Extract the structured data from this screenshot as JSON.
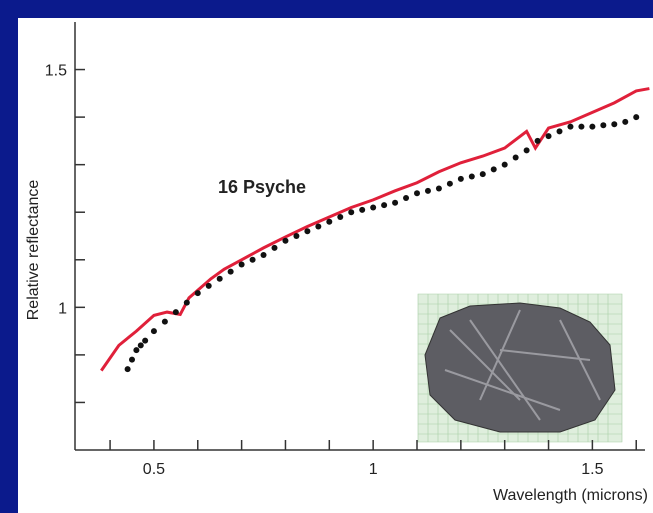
{
  "chart_data": {
    "type": "line",
    "annotation": "16 Psyche",
    "xlabel": "Wavelength (microns)",
    "ylabel": "Relative reflectance",
    "xlim": [
      0.32,
      1.62
    ],
    "ylim": [
      0.7,
      1.6
    ],
    "xticks": [
      0.5,
      1.0,
      1.5
    ],
    "xminor": [
      0.4,
      0.6,
      0.7,
      0.8,
      0.9,
      1.1,
      1.2,
      1.3,
      1.4,
      1.6
    ],
    "yticks": [
      1.0,
      1.5
    ],
    "yminor": [
      0.8,
      0.9,
      1.1,
      1.2,
      1.3,
      1.4
    ],
    "series": [
      {
        "color": "#e0203a",
        "style": "line",
        "x": [
          0.38,
          0.42,
          0.46,
          0.5,
          0.53,
          0.56,
          0.58,
          0.6,
          0.63,
          0.66,
          0.7,
          0.75,
          0.8,
          0.85,
          0.9,
          0.95,
          1.0,
          1.05,
          1.1,
          1.15,
          1.2,
          1.25,
          1.3,
          1.35,
          1.37,
          1.4,
          1.45,
          1.5,
          1.55,
          1.6,
          1.63
        ],
        "values": [
          0.867,
          0.92,
          0.95,
          0.983,
          0.99,
          0.985,
          1.02,
          1.036,
          1.06,
          1.08,
          1.1,
          1.125,
          1.148,
          1.17,
          1.19,
          1.21,
          1.226,
          1.245,
          1.262,
          1.285,
          1.304,
          1.318,
          1.335,
          1.37,
          1.335,
          1.377,
          1.39,
          1.41,
          1.43,
          1.455,
          1.46
        ]
      },
      {
        "color": "#111111",
        "style": "dots",
        "x": [
          0.44,
          0.45,
          0.46,
          0.47,
          0.48,
          0.5,
          0.525,
          0.55,
          0.575,
          0.6,
          0.625,
          0.65,
          0.675,
          0.7,
          0.725,
          0.75,
          0.775,
          0.8,
          0.825,
          0.85,
          0.875,
          0.9,
          0.925,
          0.95,
          0.975,
          1.0,
          1.025,
          1.05,
          1.075,
          1.1,
          1.125,
          1.15,
          1.175,
          1.2,
          1.225,
          1.25,
          1.275,
          1.3,
          1.325,
          1.35,
          1.375,
          1.4,
          1.425,
          1.45,
          1.475,
          1.5,
          1.525,
          1.55,
          1.575,
          1.6
        ],
        "values": [
          0.87,
          0.89,
          0.91,
          0.92,
          0.93,
          0.95,
          0.97,
          0.99,
          1.01,
          1.03,
          1.045,
          1.06,
          1.075,
          1.09,
          1.1,
          1.11,
          1.125,
          1.14,
          1.15,
          1.16,
          1.17,
          1.18,
          1.19,
          1.2,
          1.205,
          1.21,
          1.215,
          1.22,
          1.23,
          1.24,
          1.245,
          1.25,
          1.26,
          1.27,
          1.275,
          1.28,
          1.29,
          1.3,
          1.315,
          1.33,
          1.35,
          1.36,
          1.37,
          1.38,
          1.38,
          1.38,
          1.383,
          1.385,
          1.39,
          1.4
        ]
      }
    ]
  }
}
